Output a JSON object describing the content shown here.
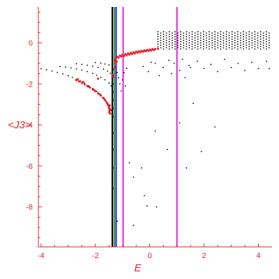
{
  "chart_data": {
    "type": "scatter",
    "title": "",
    "xlabel": "E",
    "ylabel": "<J3>",
    "xlim": [
      -4.1,
      4.5
    ],
    "ylim": [
      -9.95,
      1.75
    ],
    "x_ticks": [
      -4,
      -2,
      0,
      2,
      4
    ],
    "y_ticks": [
      0,
      -2,
      -4,
      -6,
      -8
    ],
    "x_tick_labels": [
      "-4",
      "-2",
      "0",
      "2",
      "4"
    ],
    "y_tick_labels": [
      "0",
      "-2",
      "-4",
      "-6",
      "-8"
    ],
    "grid": false,
    "vertical_lines": [
      {
        "x": -1.38,
        "color": "#000000"
      },
      {
        "x": -1.31,
        "color": "#1b8a1b"
      },
      {
        "x": -1.24,
        "color": "#1515d0"
      },
      {
        "x": -0.98,
        "color": "#e81ee8"
      },
      {
        "x": 1.0,
        "color": "#e81ee8"
      }
    ],
    "series": [
      {
        "color": "#000000",
        "marker_radius": 0.9,
        "points": [
          [
            -4.0,
            -1.26
          ],
          [
            -3.8,
            -1.31
          ],
          [
            -3.6,
            -1.37
          ],
          [
            -3.4,
            -1.44
          ],
          [
            -3.2,
            -1.51
          ],
          [
            -3.0,
            -1.6
          ],
          [
            -2.85,
            -1.68
          ],
          [
            -2.7,
            -1.77
          ],
          [
            -2.55,
            -1.86
          ],
          [
            -2.4,
            -1.97
          ],
          [
            -2.25,
            -2.09
          ],
          [
            -2.1,
            -2.22
          ],
          [
            -1.95,
            -2.37
          ],
          [
            -1.8,
            -2.54
          ],
          [
            -1.7,
            -2.7
          ],
          [
            -1.6,
            -2.87
          ],
          [
            -1.52,
            -3.03
          ],
          [
            -1.46,
            -3.2
          ],
          [
            -3.3,
            -1.15
          ],
          [
            -3.1,
            -1.18
          ],
          [
            -2.9,
            -1.22
          ],
          [
            -2.7,
            -1.27
          ],
          [
            -2.5,
            -1.33
          ],
          [
            -2.3,
            -1.4
          ],
          [
            -2.1,
            -1.49
          ],
          [
            -1.95,
            -1.58
          ],
          [
            -1.8,
            -1.68
          ],
          [
            -1.65,
            -1.8
          ],
          [
            -1.5,
            -1.96
          ],
          [
            -1.42,
            -2.1
          ],
          [
            -2.7,
            -1.02
          ],
          [
            -2.5,
            -1.05
          ],
          [
            -2.3,
            -1.09
          ],
          [
            -2.1,
            -1.14
          ],
          [
            -1.9,
            -1.2
          ],
          [
            -1.7,
            -1.28
          ],
          [
            -1.55,
            -1.38
          ],
          [
            -1.45,
            -1.48
          ],
          [
            -2.0,
            -0.96
          ],
          [
            -1.8,
            -0.99
          ],
          [
            -1.65,
            -1.03
          ],
          [
            -1.5,
            -1.08
          ],
          [
            -1.35,
            -1.3
          ],
          [
            -1.35,
            -1.6
          ],
          [
            -1.35,
            -2.0
          ],
          [
            -1.35,
            -2.4
          ],
          [
            -1.35,
            -2.8
          ],
          [
            -1.35,
            -3.2
          ],
          [
            -1.35,
            -3.6
          ],
          [
            -1.35,
            -4.4
          ],
          [
            -1.35,
            -5.2
          ],
          [
            -1.35,
            -6.1
          ],
          [
            -1.35,
            -7.1
          ],
          [
            -1.2,
            -1.45
          ],
          [
            -1.15,
            -1.7
          ],
          [
            -1.1,
            -2.0
          ],
          [
            -1.05,
            -2.35
          ],
          [
            -1.0,
            -1.8
          ],
          [
            -0.95,
            -1.45
          ],
          [
            -0.9,
            -2.1
          ],
          [
            -0.85,
            -1.25
          ],
          [
            -1.2,
            -8.7
          ],
          [
            -0.6,
            -8.9
          ],
          [
            -0.75,
            -5.85
          ],
          [
            -0.6,
            -6.55
          ],
          [
            -0.3,
            -6.1
          ],
          [
            -0.2,
            -7.45
          ],
          [
            -0.1,
            -7.95
          ],
          [
            0.25,
            -8.0
          ],
          [
            0.2,
            -4.3
          ],
          [
            0.65,
            -5.2
          ],
          [
            1.1,
            -3.9
          ],
          [
            1.35,
            -6.1
          ],
          [
            1.6,
            -2.95
          ],
          [
            1.9,
            -5.3
          ],
          [
            2.4,
            -4.1
          ],
          [
            0.2,
            -1.0
          ],
          [
            0.5,
            -1.2
          ],
          [
            0.8,
            -1.5
          ],
          [
            1.1,
            -1.35
          ],
          [
            1.3,
            -1.7
          ],
          [
            1.5,
            -1.2
          ],
          [
            0.7,
            -0.85
          ],
          [
            0.9,
            -1.0
          ],
          [
            1.2,
            -0.8
          ],
          [
            1.45,
            -1.1
          ],
          [
            1.75,
            -0.9
          ],
          [
            2.0,
            -1.25
          ],
          [
            2.25,
            -1.05
          ],
          [
            2.5,
            -1.4
          ],
          [
            2.75,
            -0.8
          ],
          [
            3.0,
            -1.2
          ],
          [
            3.25,
            -1.0
          ],
          [
            3.5,
            -1.35
          ],
          [
            3.75,
            -0.95
          ],
          [
            4.0,
            -1.25
          ],
          [
            4.3,
            -0.9
          ],
          [
            4.4,
            -1.25
          ],
          [
            -0.25,
            -1.15
          ],
          [
            -0.05,
            -1.4
          ],
          [
            0.05,
            -0.95
          ],
          [
            0.35,
            -1.6
          ]
        ],
        "band": {
          "x_start": 0.3,
          "x_end": 4.45,
          "x_step": 0.105,
          "y_low": -0.3,
          "y_high": 0.55,
          "y_step": 0.12
        }
      },
      {
        "color": "#e8202a",
        "marker_radius": 1.6,
        "points": [
          [
            -2.7,
            -1.82
          ],
          [
            -2.6,
            -1.88
          ],
          [
            -2.5,
            -1.95
          ],
          [
            -2.4,
            -2.02
          ],
          [
            -2.3,
            -2.1
          ],
          [
            -2.2,
            -2.18
          ],
          [
            -2.1,
            -2.27
          ],
          [
            -2.0,
            -2.36
          ],
          [
            -1.9,
            -2.46
          ],
          [
            -1.8,
            -2.57
          ],
          [
            -1.72,
            -2.68
          ],
          [
            -1.64,
            -2.8
          ],
          [
            -1.58,
            -2.92
          ],
          [
            -1.53,
            -3.05
          ],
          [
            -1.5,
            -3.18
          ],
          [
            -1.48,
            -3.32
          ],
          [
            -1.46,
            -3.45
          ],
          [
            -2.65,
            -1.78
          ],
          [
            -2.45,
            -1.9
          ],
          [
            -2.25,
            -2.13
          ],
          [
            -2.05,
            -2.3
          ],
          [
            -1.85,
            -2.5
          ],
          [
            -1.68,
            -2.72
          ],
          [
            -1.55,
            -2.98
          ],
          [
            -1.47,
            -3.25
          ],
          [
            -1.5,
            -3.1
          ],
          [
            -1.47,
            -3.05
          ],
          [
            -1.44,
            -3.28
          ],
          [
            -1.49,
            -3.38
          ],
          [
            -1.9,
            -1.75
          ],
          [
            -1.38,
            -1.55
          ],
          [
            -1.35,
            -1.65
          ],
          [
            -1.2,
            -0.68
          ],
          [
            -1.1,
            -0.62
          ],
          [
            -1.0,
            -0.58
          ],
          [
            -0.9,
            -0.55
          ],
          [
            -0.8,
            -0.52
          ],
          [
            -0.7,
            -0.49
          ],
          [
            -0.6,
            -0.46
          ],
          [
            -0.5,
            -0.43
          ],
          [
            -0.4,
            -0.41
          ],
          [
            -0.3,
            -0.39
          ],
          [
            -0.2,
            -0.37
          ],
          [
            -0.1,
            -0.35
          ],
          [
            0.0,
            -0.33
          ],
          [
            0.1,
            -0.31
          ],
          [
            0.2,
            -0.3
          ],
          [
            0.3,
            -0.29
          ],
          [
            -1.25,
            -0.78
          ],
          [
            -1.15,
            -0.72
          ],
          [
            -1.05,
            -0.66
          ],
          [
            -0.95,
            -0.64
          ],
          [
            -0.85,
            -0.6
          ],
          [
            -0.75,
            -0.57
          ],
          [
            -0.65,
            -0.54
          ],
          [
            -0.55,
            -0.51
          ],
          [
            -0.45,
            -0.48
          ],
          [
            -0.35,
            -0.46
          ],
          [
            -0.25,
            -0.43
          ],
          [
            -0.15,
            -0.41
          ],
          [
            -0.05,
            -0.39
          ],
          [
            0.05,
            -0.37
          ],
          [
            0.15,
            -0.35
          ],
          [
            -1.28,
            -0.88
          ],
          [
            -1.25,
            -1.0
          ],
          [
            -1.22,
            -0.92
          ],
          [
            -1.3,
            -1.2
          ]
        ]
      }
    ]
  }
}
